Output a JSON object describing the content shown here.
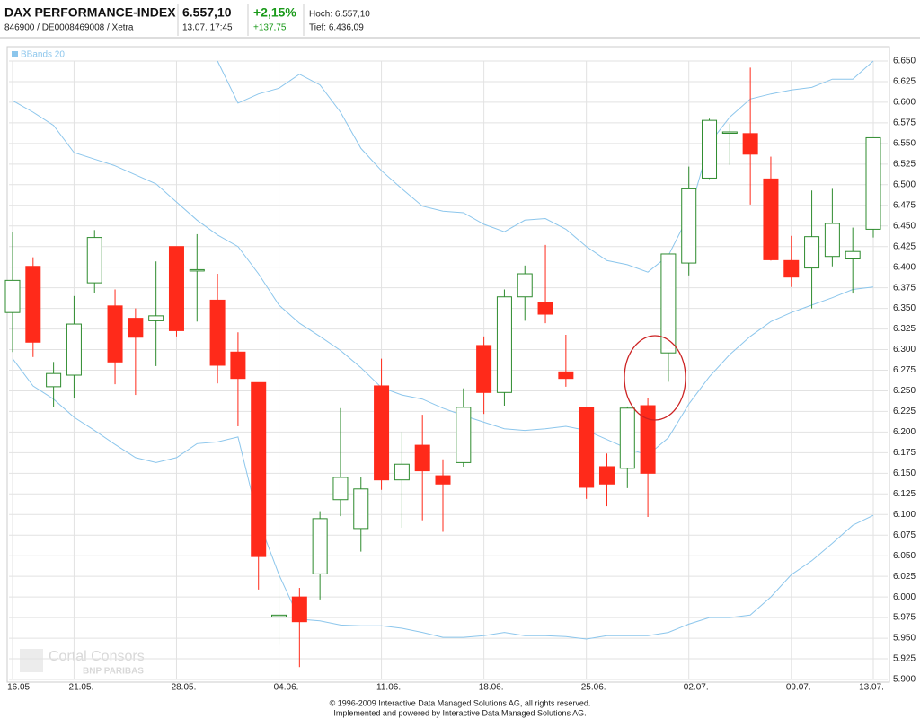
{
  "header": {
    "title": "DAX PERFORMANCE-INDEX",
    "subtitle": "846900 / DE0008469008 / Xetra",
    "price": "6.557,10",
    "time": "13.07. 17:45",
    "change_pct": "+2,15%",
    "change_abs": "+137,75",
    "high": "Hoch: 6.557,10",
    "low": "Tief: 6.436,09"
  },
  "watermark": {
    "brand": "Cortal Consors",
    "parent": "BNP PARIBAS"
  },
  "footer": {
    "line1": "© 1996-2009 Interactive Data Managed Solutions AG, all rights reserved.",
    "line2": "Implemented and powered by Interactive Data Managed Solutions AG."
  },
  "chart_data": {
    "type": "candlestick",
    "categories": [
      "16.05.",
      null,
      null,
      "21.05.",
      null,
      null,
      null,
      null,
      "28.05.",
      null,
      null,
      null,
      null,
      "04.06.",
      null,
      null,
      null,
      null,
      "11.06.",
      null,
      null,
      null,
      null,
      "18.06.",
      null,
      null,
      null,
      null,
      "25.06.",
      null,
      null,
      null,
      null,
      "02.07.",
      null,
      null,
      null,
      null,
      "09.07.",
      null,
      null,
      null,
      "13.07."
    ],
    "open": [
      6345,
      6401,
      6255,
      6269,
      6381,
      6353,
      6338,
      6335,
      6425,
      6396,
      6360,
      6297,
      6260,
      5976,
      6000,
      6028,
      6118,
      6083,
      6256,
      6142,
      6184,
      6147,
      6163,
      6305,
      6248,
      6364,
      6357,
      6273,
      6230,
      6158,
      6156,
      6232,
      6296,
      6405,
      6508,
      6563,
      6562,
      6507,
      6408,
      6399,
      6413,
      6410,
      6446
    ],
    "high": [
      6443,
      6412,
      6285,
      6365,
      6445,
      6373,
      6350,
      6407,
      6425,
      6440,
      6392,
      6321,
      6260,
      6032,
      6011,
      6104,
      6229,
      6145,
      6289,
      6200,
      6221,
      6167,
      6253,
      6316,
      6373,
      6402,
      6427,
      6318,
      6230,
      6174,
      6231,
      6241,
      6416,
      6522,
      6580,
      6574,
      6642,
      6534,
      6438,
      6493,
      6495,
      6448,
      6557
    ],
    "low": [
      6297,
      6291,
      6230,
      6241,
      6369,
      6258,
      6245,
      6280,
      6316,
      6334,
      6259,
      6207,
      6009,
      5942,
      5915,
      5997,
      6098,
      6055,
      6130,
      6084,
      6093,
      6079,
      6158,
      6222,
      6232,
      6335,
      6332,
      6255,
      6119,
      6110,
      6132,
      6097,
      6261,
      6390,
      6507,
      6524,
      6476,
      6408,
      6376,
      6350,
      6401,
      6368,
      6436
    ],
    "close": [
      6384,
      6309,
      6271,
      6331,
      6436,
      6285,
      6315,
      6341,
      6323,
      6397,
      6281,
      6265,
      6049,
      5978,
      5970,
      6095,
      6145,
      6131,
      6142,
      6161,
      6153,
      6137,
      6230,
      6248,
      6364,
      6392,
      6343,
      6265,
      6133,
      6137,
      6229,
      6150,
      6416,
      6495,
      6578,
      6564,
      6537,
      6409,
      6388,
      6437,
      6453,
      6419,
      6557
    ],
    "up_color": "#2e8b2e",
    "down_color": "#ff2a1a",
    "bands": {
      "name": "BBands 20",
      "color": "#8cc6ec",
      "upper": [
        null,
        null,
        null,
        null,
        null,
        null,
        null,
        null,
        null,
        null,
        6650,
        6599,
        6610,
        6617,
        6634,
        6621,
        6588,
        6544,
        6517,
        6495,
        6474,
        6468,
        6466,
        6452,
        6443,
        6457,
        6459,
        6446,
        6425,
        6408,
        6403,
        6394,
        6414,
        6463,
        6550,
        6582,
        6604,
        6610,
        6615,
        6618,
        6628,
        6628,
        6650
      ],
      "middle": [
        6602,
        6588,
        6572,
        6539,
        6531,
        6523,
        6512,
        6501,
        6479,
        6457,
        6439,
        6425,
        6392,
        6354,
        6332,
        6316,
        6299,
        6278,
        6254,
        6245,
        6240,
        6229,
        6220,
        6212,
        6204,
        6202,
        6204,
        6207,
        6202,
        6191,
        6180,
        6172,
        6193,
        6234,
        6267,
        6294,
        6316,
        6334,
        6345,
        6354,
        6363,
        6373,
        6376
      ],
      "lower": [
        6289,
        6256,
        6240,
        6218,
        6202,
        6185,
        6169,
        6163,
        6169,
        6186,
        6188,
        6194,
        6093,
        6027,
        5973,
        5971,
        5966,
        5965,
        5965,
        5962,
        5957,
        5951,
        5951,
        5953,
        5957,
        5953,
        5953,
        5952,
        5949,
        5953,
        5953,
        5953,
        5957,
        5967,
        5975,
        5975,
        5978,
        6000,
        6027,
        6044,
        6065,
        6087,
        6099
      ]
    },
    "ylim": [
      5900,
      6650
    ],
    "yticks": [
      {
        "value": 5900,
        "label": "5.900"
      },
      {
        "value": 5925,
        "label": "5.925"
      },
      {
        "value": 5950,
        "label": "5.950"
      },
      {
        "value": 5975,
        "label": "5.975"
      },
      {
        "value": 6000,
        "label": "6.000"
      },
      {
        "value": 6025,
        "label": "6.025"
      },
      {
        "value": 6050,
        "label": "6.050"
      },
      {
        "value": 6075,
        "label": "6.075"
      },
      {
        "value": 6100,
        "label": "6.100"
      },
      {
        "value": 6125,
        "label": "6.125"
      },
      {
        "value": 6150,
        "label": "6.150"
      },
      {
        "value": 6175,
        "label": "6.175"
      },
      {
        "value": 6200,
        "label": "6.200"
      },
      {
        "value": 6225,
        "label": "6.225"
      },
      {
        "value": 6250,
        "label": "6.250"
      },
      {
        "value": 6275,
        "label": "6.275"
      },
      {
        "value": 6300,
        "label": "6.300"
      },
      {
        "value": 6325,
        "label": "6.325"
      },
      {
        "value": 6350,
        "label": "6.350"
      },
      {
        "value": 6375,
        "label": "6.375"
      },
      {
        "value": 6400,
        "label": "6.400"
      },
      {
        "value": 6425,
        "label": "6.425"
      },
      {
        "value": 6450,
        "label": "6.450"
      },
      {
        "value": 6475,
        "label": "6.475"
      },
      {
        "value": 6500,
        "label": "6.500"
      },
      {
        "value": 6525,
        "label": "6.525"
      },
      {
        "value": 6550,
        "label": "6.550"
      },
      {
        "value": 6575,
        "label": "6.575"
      },
      {
        "value": 6600,
        "label": "6.600"
      },
      {
        "value": 6625,
        "label": "6.625"
      },
      {
        "value": 6650,
        "label": "6.650"
      }
    ],
    "grid": true
  }
}
